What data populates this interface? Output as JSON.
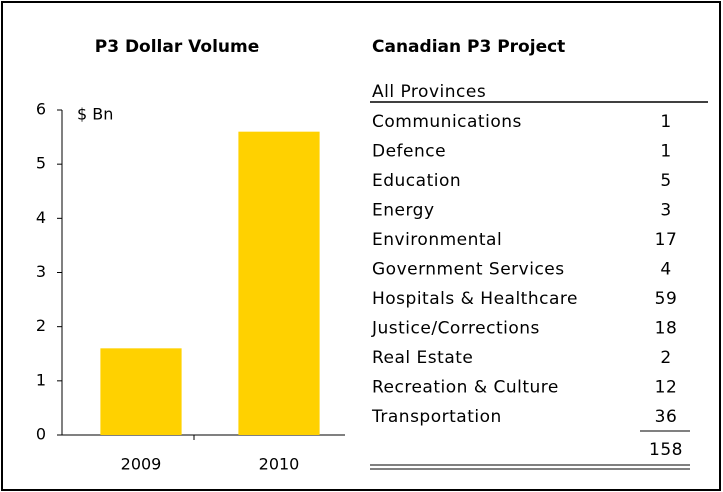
{
  "chart_data": {
    "type": "bar",
    "title": "P3 Dollar Volume",
    "y_label": "$ Bn",
    "categories": [
      "2009",
      "2010"
    ],
    "values": [
      1.6,
      5.6
    ],
    "color": "#ffd100",
    "ylim": [
      0,
      6
    ],
    "yticks": [
      0,
      1,
      2,
      3,
      4,
      5,
      6
    ],
    "grid": false
  },
  "table": {
    "title": "Canadian P3 Project",
    "header": "All Provinces",
    "rows": [
      [
        "Communications",
        1
      ],
      [
        "Defence",
        1
      ],
      [
        "Education",
        5
      ],
      [
        "Energy",
        3
      ],
      [
        "Environmental",
        17
      ],
      [
        "Government Services",
        4
      ],
      [
        "Hospitals & Healthcare",
        59
      ],
      [
        "Justice/Corrections",
        18
      ],
      [
        "Real Estate",
        2
      ],
      [
        "Recreation & Culture",
        12
      ],
      [
        "Transportation",
        36
      ]
    ],
    "total": 158
  }
}
